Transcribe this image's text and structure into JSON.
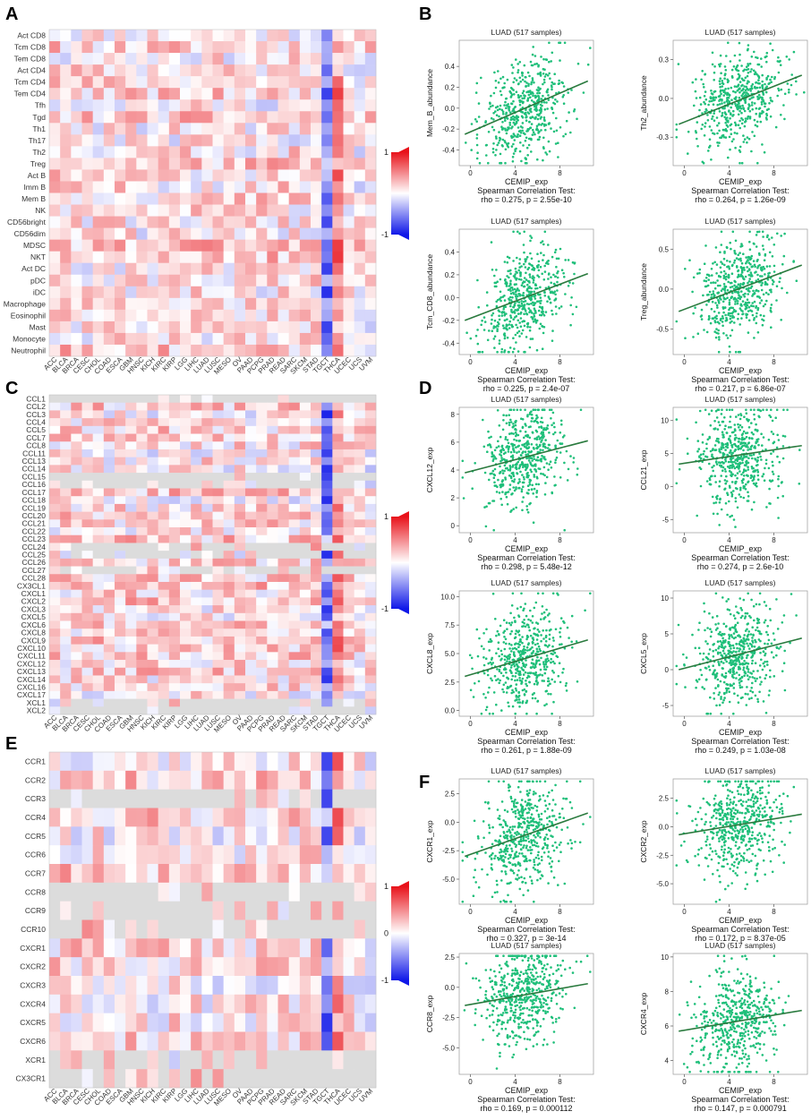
{
  "figure": {
    "panel_letters": [
      "A",
      "B",
      "C",
      "D",
      "E",
      "F"
    ],
    "colors": {
      "positive": "#e8121a",
      "negative": "#1018e8",
      "neutral": "#ffffff",
      "missing": "#dcdcdc",
      "scatter": "#1fbf7a",
      "fit": "#2a7a3e"
    }
  },
  "chart_data": [
    {
      "panel": "A",
      "type": "heatmap",
      "rows": [
        "Act CD8",
        "Tcm CD8",
        "Tem CD8",
        "Act CD4",
        "Tcm CD4",
        "Tem CD4",
        "Tfh",
        "Tgd",
        "Th1",
        "Th17",
        "Th2",
        "Treg",
        "Act B",
        "Imm B",
        "Mem B",
        "NK",
        "CD56bright",
        "CD56dim",
        "MDSC",
        "NKT",
        "Act DC",
        "pDC",
        "iDC",
        "Macrophage",
        "Eosinophil",
        "Mast",
        "Monocyte",
        "Neutrophil"
      ],
      "columns": [
        "ACC",
        "BLCA",
        "BRCA",
        "CESC",
        "CHOL",
        "COAD",
        "ESCA",
        "GBM",
        "HNSC",
        "KICH",
        "KIRC",
        "KIRP",
        "LGG",
        "LIHC",
        "LUAD",
        "LUSC",
        "MESO",
        "OV",
        "PAAD",
        "PCPG",
        "PRAD",
        "READ",
        "SARC",
        "SKCM",
        "STAD",
        "TGCT",
        "THCA",
        "UCEC",
        "UCS",
        "UVM"
      ],
      "color_scale": {
        "min": -1,
        "max": 1,
        "labels": [
          "1",
          "-1"
        ]
      },
      "overall_pattern": "mostly positive (red) correlations; TGCT column negative (blue); THCA column strongly positive",
      "values": []
    },
    {
      "panel": "B",
      "type": "scatter",
      "plots": [
        {
          "title": "LUAD (517 samples)",
          "xlabel": "CEMIP_exp",
          "ylabel": "Mem_B_abundance",
          "xticks": [
            "0",
            "4",
            "8"
          ],
          "yticks": [
            "0.4",
            "0.2",
            "0.0",
            "-0.2",
            "-0.4"
          ],
          "xlim": [
            -1,
            11
          ],
          "ylim": [
            -0.55,
            0.65
          ],
          "stat_label": "Spearman Correlation Test:",
          "stat": "rho = 0.275, p = 2.55e-10",
          "n": 517,
          "fit": [
            [
              -0.5,
              -0.25
            ],
            [
              10.5,
              0.26
            ]
          ]
        },
        {
          "title": "LUAD (517 samples)",
          "xlabel": "CEMIP_exp",
          "ylabel": "Th2_abundance",
          "xticks": [
            "0",
            "4",
            "8"
          ],
          "yticks": [
            "0.3",
            "0.0",
            "-0.3"
          ],
          "xlim": [
            -1,
            11
          ],
          "ylim": [
            -0.52,
            0.45
          ],
          "stat_label": "Spearman Correlation Test:",
          "stat": "rho = 0.264, p = 1.26e-09",
          "n": 517,
          "fit": [
            [
              -0.5,
              -0.2
            ],
            [
              10.5,
              0.18
            ]
          ]
        },
        {
          "title": "LUAD (517 samples)",
          "xlabel": "CEMIP_exp",
          "ylabel": "Tcm_CD8_abundance",
          "xticks": [
            "0",
            "4",
            "8"
          ],
          "yticks": [
            "0.4",
            "0.2",
            "0.0",
            "-0.2",
            "-0.4"
          ],
          "xlim": [
            -1,
            11
          ],
          "ylim": [
            -0.5,
            0.6
          ],
          "stat_label": "Spearman Correlation Test:",
          "stat": "rho = 0.225, p = 2.4e-07",
          "n": 517,
          "fit": [
            [
              -0.5,
              -0.2
            ],
            [
              10.5,
              0.21
            ]
          ]
        },
        {
          "title": "LUAD (517 samples)",
          "xlabel": "CEMIP_exp",
          "ylabel": "Treg_abundance",
          "xticks": [
            "0",
            "4",
            "8"
          ],
          "yticks": [
            "0.5",
            "0.0",
            "-0.5"
          ],
          "xlim": [
            -1,
            11
          ],
          "ylim": [
            -0.82,
            0.75
          ],
          "stat_label": "Spearman Correlation Test:",
          "stat": "rho = 0.217, p = 6.86e-07",
          "n": 517,
          "fit": [
            [
              -0.5,
              -0.28
            ],
            [
              10.5,
              0.3
            ]
          ]
        }
      ]
    },
    {
      "panel": "C",
      "type": "heatmap",
      "rows": [
        "CCL1",
        "CCL2",
        "CCL3",
        "CCL4",
        "CCL5",
        "CCL7",
        "CCL8",
        "CCL11",
        "CCL13",
        "CCL14",
        "CCL15",
        "CCL16",
        "CCL17",
        "CCL18",
        "CCL19",
        "CCL20",
        "CCL21",
        "CCL22",
        "CCL23",
        "CCL24",
        "CCL25",
        "CCL26",
        "CCL27",
        "CCL28",
        "CX3CL1",
        "CXCL1",
        "CXCL2",
        "CXCL3",
        "CXCL5",
        "CXCL6",
        "CXCL8",
        "CXCL9",
        "CXCL10",
        "CXCL11",
        "CXCL12",
        "CXCL13",
        "CXCL14",
        "CXCL16",
        "CXCL17",
        "XCL1",
        "XCL2"
      ],
      "columns": [
        "ACC",
        "BLCA",
        "BRCA",
        "CESC",
        "CHOL",
        "COAD",
        "ESCA",
        "GBM",
        "HNSC",
        "KICH",
        "KIRC",
        "KIRP",
        "LGG",
        "LIHC",
        "LUAD",
        "LUSC",
        "MESO",
        "OV",
        "PAAD",
        "PCPG",
        "PRAD",
        "READ",
        "SARC",
        "SKCM",
        "STAD",
        "TGCT",
        "THCA",
        "UCEC",
        "UCS",
        "UVM"
      ],
      "color_scale": {
        "min": -1,
        "max": 1,
        "labels": [
          "1",
          "-1"
        ]
      },
      "overall_pattern": "mostly positive correlations; TGCT column negative; THCA column strongly positive",
      "values": []
    },
    {
      "panel": "D",
      "type": "scatter",
      "plots": [
        {
          "title": "LUAD (517 samples)",
          "xlabel": "CEMIP_exp",
          "ylabel": "CXCL12_exp",
          "xticks": [
            "0",
            "4",
            "8"
          ],
          "yticks": [
            "8",
            "6",
            "4",
            "2",
            "0"
          ],
          "xlim": [
            -1,
            11
          ],
          "ylim": [
            -0.5,
            8.5
          ],
          "stat_label": "Spearman Correlation Test:",
          "stat": "rho = 0.298, p = 5.48e-12",
          "n": 517,
          "fit": [
            [
              -0.5,
              3.8
            ],
            [
              10.5,
              6.1
            ]
          ]
        },
        {
          "title": "LUAD (517 samples)",
          "xlabel": "CEMIP_exp",
          "ylabel": "CCL21_exp",
          "xticks": [
            "0",
            "4",
            "8"
          ],
          "yticks": [
            "10",
            "5",
            "0",
            "-5"
          ],
          "xlim": [
            -1,
            11
          ],
          "ylim": [
            -7,
            12
          ],
          "stat_label": "Spearman Correlation Test:",
          "stat": "rho = 0.274, p = 2.6e-10",
          "n": 517,
          "fit": [
            [
              -0.5,
              3.4
            ],
            [
              10.5,
              6.2
            ]
          ]
        },
        {
          "title": "LUAD (517 samples)",
          "xlabel": "CEMIP_exp",
          "ylabel": "CXCL8_exp",
          "xticks": [
            "0",
            "4",
            "8"
          ],
          "yticks": [
            "10.0",
            "7.5",
            "5.0",
            "2.5",
            "0.0"
          ],
          "xlim": [
            -1,
            11
          ],
          "ylim": [
            -0.5,
            10.5
          ],
          "stat_label": "Spearman Correlation Test:",
          "stat": "rho = 0.261, p = 1.88e-09",
          "n": 517,
          "fit": [
            [
              -0.5,
              3.0
            ],
            [
              10.5,
              6.2
            ]
          ]
        },
        {
          "title": "LUAD (517 samples)",
          "xlabel": "CEMIP_exp",
          "ylabel": "CXCL5_exp",
          "xticks": [
            "0",
            "4",
            "8"
          ],
          "yticks": [
            "10",
            "5",
            "0",
            "-5"
          ],
          "xlim": [
            -1,
            11
          ],
          "ylim": [
            -6.5,
            11
          ],
          "stat_label": "Spearman Correlation Test:",
          "stat": "rho = 0.249, p = 1.03e-08",
          "n": 517,
          "fit": [
            [
              -0.5,
              0.0
            ],
            [
              10.5,
              4.4
            ]
          ]
        }
      ]
    },
    {
      "panel": "E",
      "type": "heatmap",
      "rows": [
        "CCR1",
        "CCR2",
        "CCR3",
        "CCR4",
        "CCR5",
        "CCR6",
        "CCR7",
        "CCR8",
        "CCR9",
        "CCR10",
        "CXCR1",
        "CXCR2",
        "CXCR3",
        "CXCR4",
        "CXCR5",
        "CXCR6",
        "XCR1",
        "CX3CR1"
      ],
      "columns": [
        "ACC",
        "BLCA",
        "BRCA",
        "CESC",
        "CHOL",
        "COAD",
        "ESCA",
        "GBM",
        "HNSC",
        "KICH",
        "KIRC",
        "KIRP",
        "LGG",
        "LIHC",
        "LUAD",
        "LUSC",
        "MESO",
        "OV",
        "PAAD",
        "PCPG",
        "PRAD",
        "READ",
        "SARC",
        "SKCM",
        "STAD",
        "TGCT",
        "THCA",
        "UCEC",
        "UCS",
        "UVM"
      ],
      "color_scale": {
        "min": -1,
        "max": 1,
        "labels": [
          "1",
          "0",
          "-1"
        ]
      },
      "overall_pattern": "mostly positive correlations; TGCT column negative; THCA column strongly positive",
      "values": []
    },
    {
      "panel": "F",
      "type": "scatter",
      "plots": [
        {
          "title": "LUAD (517 samples)",
          "xlabel": "CEMIP_exp",
          "ylabel": "CXCR1_exp",
          "xticks": [
            "0",
            "4",
            "8"
          ],
          "yticks": [
            "2.5",
            "0.0",
            "-2.5",
            "-5.0"
          ],
          "xlim": [
            -1,
            11
          ],
          "ylim": [
            -7.2,
            3.8
          ],
          "stat_label": "Spearman Correlation Test:",
          "stat": "rho = 0.327, p = 3e-14",
          "n": 517,
          "fit": [
            [
              -0.5,
              -3.0
            ],
            [
              10.5,
              0.8
            ]
          ]
        },
        {
          "title": "LUAD (517 samples)",
          "xlabel": "CEMIP_exp",
          "ylabel": "CXCR2_exp",
          "xticks": [
            "0",
            "4",
            "8"
          ],
          "yticks": [
            "2.5",
            "0.0",
            "-2.5",
            "-5.0"
          ],
          "xlim": [
            -1,
            11
          ],
          "ylim": [
            -6.8,
            4.2
          ],
          "stat_label": "Spearman Correlation Test:",
          "stat": "rho = 0.172, p = 8.37e-05",
          "n": 517,
          "fit": [
            [
              -0.5,
              -0.7
            ],
            [
              10.5,
              1.1
            ]
          ]
        },
        {
          "title": "LUAD (517 samples)",
          "xlabel": "CEMIP_exp",
          "ylabel": "CCR8_exp",
          "xticks": [
            "0",
            "4",
            "8"
          ],
          "yticks": [
            "2.5",
            "0.0",
            "-2.5",
            "-5.0"
          ],
          "xlim": [
            -1,
            11
          ],
          "ylim": [
            -7.2,
            2.8
          ],
          "stat_label": "Spearman Correlation Test:",
          "stat": "rho = 0.169, p = 0.000112",
          "n": 517,
          "fit": [
            [
              -0.5,
              -1.5
            ],
            [
              10.5,
              0.3
            ]
          ]
        },
        {
          "title": "LUAD (517 samples)",
          "xlabel": "CEMIP_exp",
          "ylabel": "CXCR4_exp",
          "xticks": [
            "0",
            "4",
            "8"
          ],
          "yticks": [
            "10",
            "8",
            "6",
            "4"
          ],
          "xlim": [
            -1,
            11
          ],
          "ylim": [
            3.2,
            10.2
          ],
          "stat_label": "Spearman Correlation Test:",
          "stat": "rho = 0.147, p = 0.000791",
          "n": 517,
          "fit": [
            [
              -0.5,
              5.7
            ],
            [
              10.5,
              6.9
            ]
          ]
        }
      ]
    }
  ]
}
